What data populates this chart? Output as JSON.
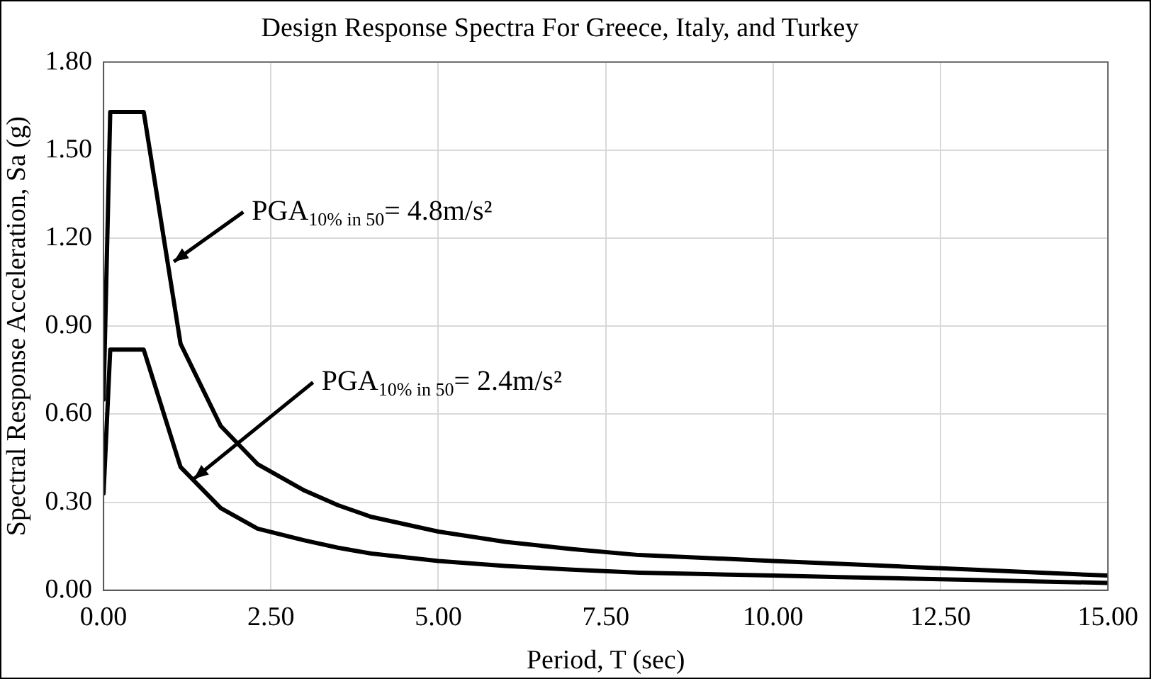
{
  "chart_data": {
    "type": "line",
    "title": "Design Response Spectra For Greece, Italy, and Turkey",
    "xlabel": "Period, T (sec)",
    "ylabel": "Spectral Response Acceleration, Sa (g)",
    "xlim": [
      0,
      15
    ],
    "xticks": [
      {
        "value": 0,
        "label": "0.00"
      },
      {
        "value": 2.5,
        "label": "2.50"
      },
      {
        "value": 5,
        "label": "5.00"
      },
      {
        "value": 7.5,
        "label": "7.50"
      },
      {
        "value": 10,
        "label": "10.00"
      },
      {
        "value": 12.5,
        "label": "12.50"
      },
      {
        "value": 15,
        "label": "15.00"
      }
    ],
    "ylim": [
      0,
      1.8
    ],
    "yticks": [
      {
        "value": 0,
        "label": "0.00"
      },
      {
        "value": 0.3,
        "label": "0.30"
      },
      {
        "value": 0.6,
        "label": "0.60"
      },
      {
        "value": 0.9,
        "label": "0.90"
      },
      {
        "value": 1.2,
        "label": "1.20"
      },
      {
        "value": 1.5,
        "label": "1.50"
      },
      {
        "value": 1.8,
        "label": "1.80"
      }
    ],
    "x": [
      0,
      0.1,
      0.6,
      1.15,
      1.75,
      2.3,
      3,
      3.5,
      4,
      5,
      6,
      7,
      8,
      9,
      10,
      11,
      12,
      13,
      14,
      15
    ],
    "series": [
      {
        "color": "#000000",
        "values": [
          0.65,
          1.63,
          1.63,
          0.84,
          0.56,
          0.43,
          0.34,
          0.29,
          0.25,
          0.2,
          0.165,
          0.14,
          0.12,
          0.11,
          0.1,
          0.09,
          0.08,
          0.07,
          0.06,
          0.05
        ]
      },
      {
        "color": "#000000",
        "values": [
          0.33,
          0.82,
          0.82,
          0.42,
          0.28,
          0.21,
          0.17,
          0.145,
          0.125,
          0.1,
          0.083,
          0.07,
          0.06,
          0.055,
          0.05,
          0.045,
          0.04,
          0.035,
          0.03,
          0.025
        ]
      }
    ],
    "annotations": [
      {
        "text": "PGA$_{10% in 50}$= 4.8m/s²",
        "x": 1.05,
        "y": 1.12
      },
      {
        "text": "PGA$_{10% in 50}$= 2.4m/s²",
        "x": 1.35,
        "y": 0.38
      }
    ],
    "grid": true,
    "legend": false,
    "marker": "none",
    "line_style": "solid"
  }
}
